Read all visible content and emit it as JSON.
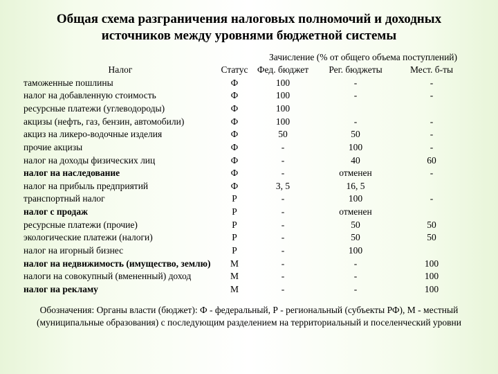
{
  "title": "Общая схема разграничения налоговых полномочий и доходных источников между уровнями бюджетной системы",
  "group_header": "Зачисление (% от общего объема поступлений)",
  "columns": {
    "name": "Налог",
    "status": "Статус",
    "fed": "Фед. бюджет",
    "reg": "Рег. бюджеты",
    "loc": "Мест. б-ты"
  },
  "rows": [
    {
      "name": "таможенные пошлины",
      "bold": false,
      "status": "Ф",
      "fed": "100",
      "reg": "-",
      "loc": "-"
    },
    {
      "name": "налог на добавленную стоимость",
      "bold": false,
      "status": "Ф",
      "fed": "100",
      "reg": "-",
      "loc": "-"
    },
    {
      "name": "ресурсные платежи (углеводороды)",
      "bold": false,
      "status": "Ф",
      "fed": "100",
      "reg": "",
      "loc": ""
    },
    {
      "name": "акцизы (нефть, газ, бензин, автомобили)",
      "bold": false,
      "status": "Ф",
      "fed": "100",
      "reg": "-",
      "loc": "-"
    },
    {
      "name": "акциз на ликеро-водочные изделия",
      "bold": false,
      "status": "Ф",
      "fed": "50",
      "reg": "50",
      "loc": "-"
    },
    {
      "name": "прочие акцизы",
      "bold": false,
      "status": "Ф",
      "fed": "-",
      "reg": "100",
      "loc": "-"
    },
    {
      "name": "налог на доходы физических лиц",
      "bold": false,
      "status": "Ф",
      "fed": "-",
      "reg": "40",
      "loc": "60"
    },
    {
      "name": "налог на наследование",
      "bold": true,
      "status": "Ф",
      "fed": "-",
      "reg": "отменен",
      "loc": "-"
    },
    {
      "name": "налог на прибыль предприятий",
      "bold": false,
      "status": "Ф",
      "fed": "3, 5",
      "reg": "16, 5",
      "loc": ""
    },
    {
      "name": "транспортный налог",
      "bold": false,
      "status": "Р",
      "fed": "-",
      "reg": "100",
      "loc": "-"
    },
    {
      "name": "налог с продаж",
      "bold": true,
      "status": "Р",
      "fed": "-",
      "reg": "отменен",
      "loc": ""
    },
    {
      "name": "ресурсные платежи (прочие)",
      "bold": false,
      "status": "Р",
      "fed": "-",
      "reg": "50",
      "loc": "50"
    },
    {
      "name": "экологические платежи (налоги)",
      "bold": false,
      "status": "Р",
      "fed": "-",
      "reg": "50",
      "loc": "50"
    },
    {
      "name": "налог на игорный бизнес",
      "bold": false,
      "status": "Р",
      "fed": "-",
      "reg": "100",
      "loc": ""
    },
    {
      "name": "налог на недвижимость (имущество, землю)",
      "bold": true,
      "status": "М",
      "fed": "-",
      "reg": "-",
      "loc": "100"
    },
    {
      "name": "налоги на совокупный (вмененный) доход",
      "bold": false,
      "status": "М",
      "fed": "-",
      "reg": "-",
      "loc": "100"
    },
    {
      "name": "налог на рекламу",
      "bold": true,
      "status": "М",
      "fed": "-",
      "reg": "-",
      "loc": "100"
    }
  ],
  "legend": "Обозначения: Органы власти (бюджет): Ф - федеральный, Р - региональный (субъекты РФ), М - местный (муниципальные образования) с последующим разделением на территориальный и поселенческий уровни",
  "colors": {
    "text": "#000000",
    "bg_edge": "#e8f5d9",
    "bg_mid": "#ffffff"
  }
}
